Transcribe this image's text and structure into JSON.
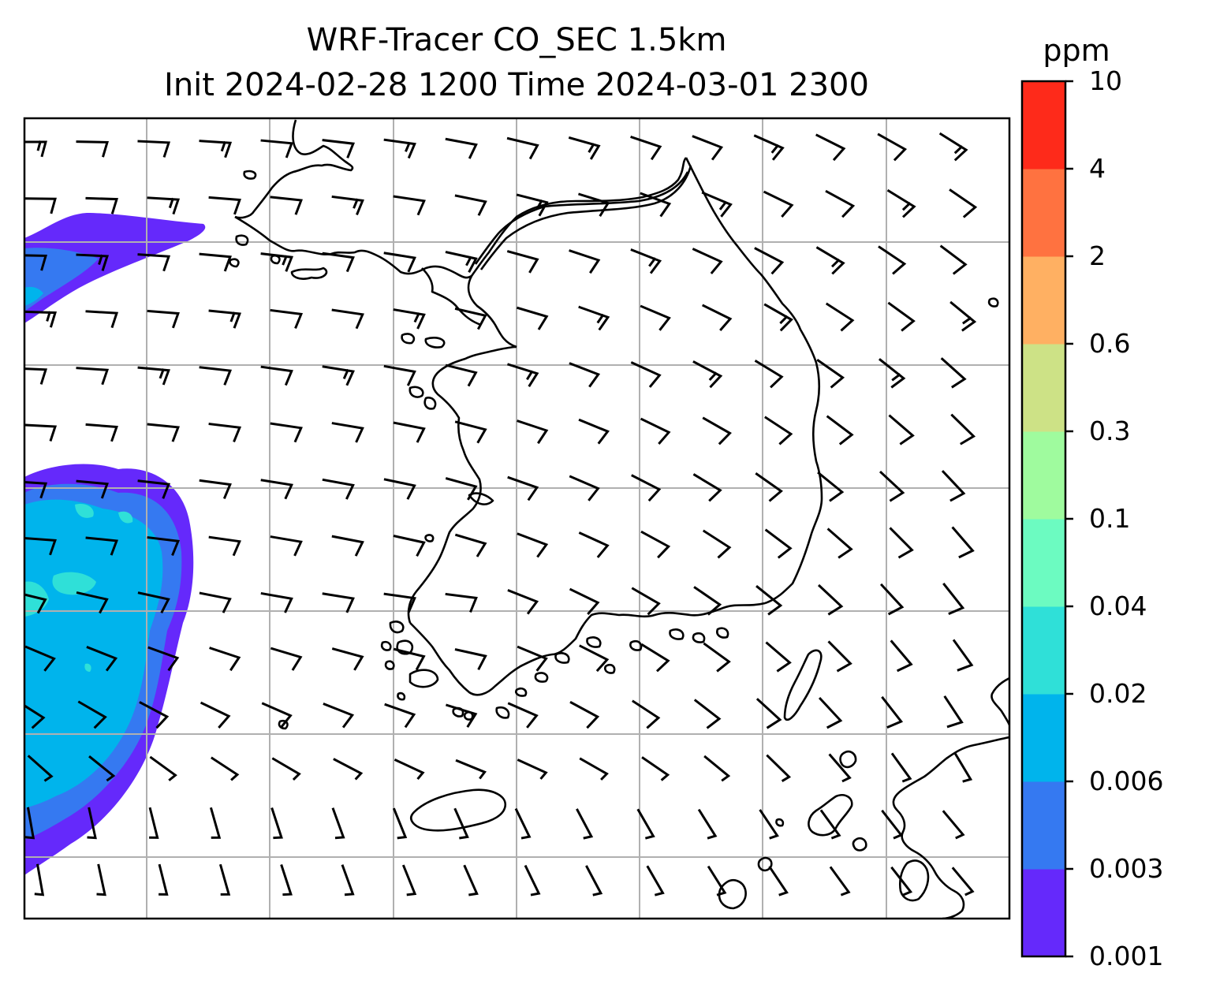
{
  "title": {
    "line1": "WRF-Tracer CO_SEC 1.5km",
    "line2": "Init 2024-02-28 1200 Time 2024-03-01 2300"
  },
  "colorbar": {
    "unit": "ppm",
    "levels": [
      "0.001",
      "0.003",
      "0.006",
      "0.02",
      "0.04",
      "0.1",
      "0.3",
      "0.6",
      "2",
      "4",
      "10"
    ],
    "colors": [
      "#6529fb",
      "#3579f1",
      "#00b4ec",
      "#2fe0d8",
      "#6cfbc1",
      "#9ffb9e",
      "#cde286",
      "#ffb062",
      "#ff7240",
      "#fe2a1a"
    ]
  },
  "map": {
    "gridlines": true,
    "gridline_color": "#b0b0b0",
    "coastline_color": "#000000",
    "wind_barbs": true
  }
}
